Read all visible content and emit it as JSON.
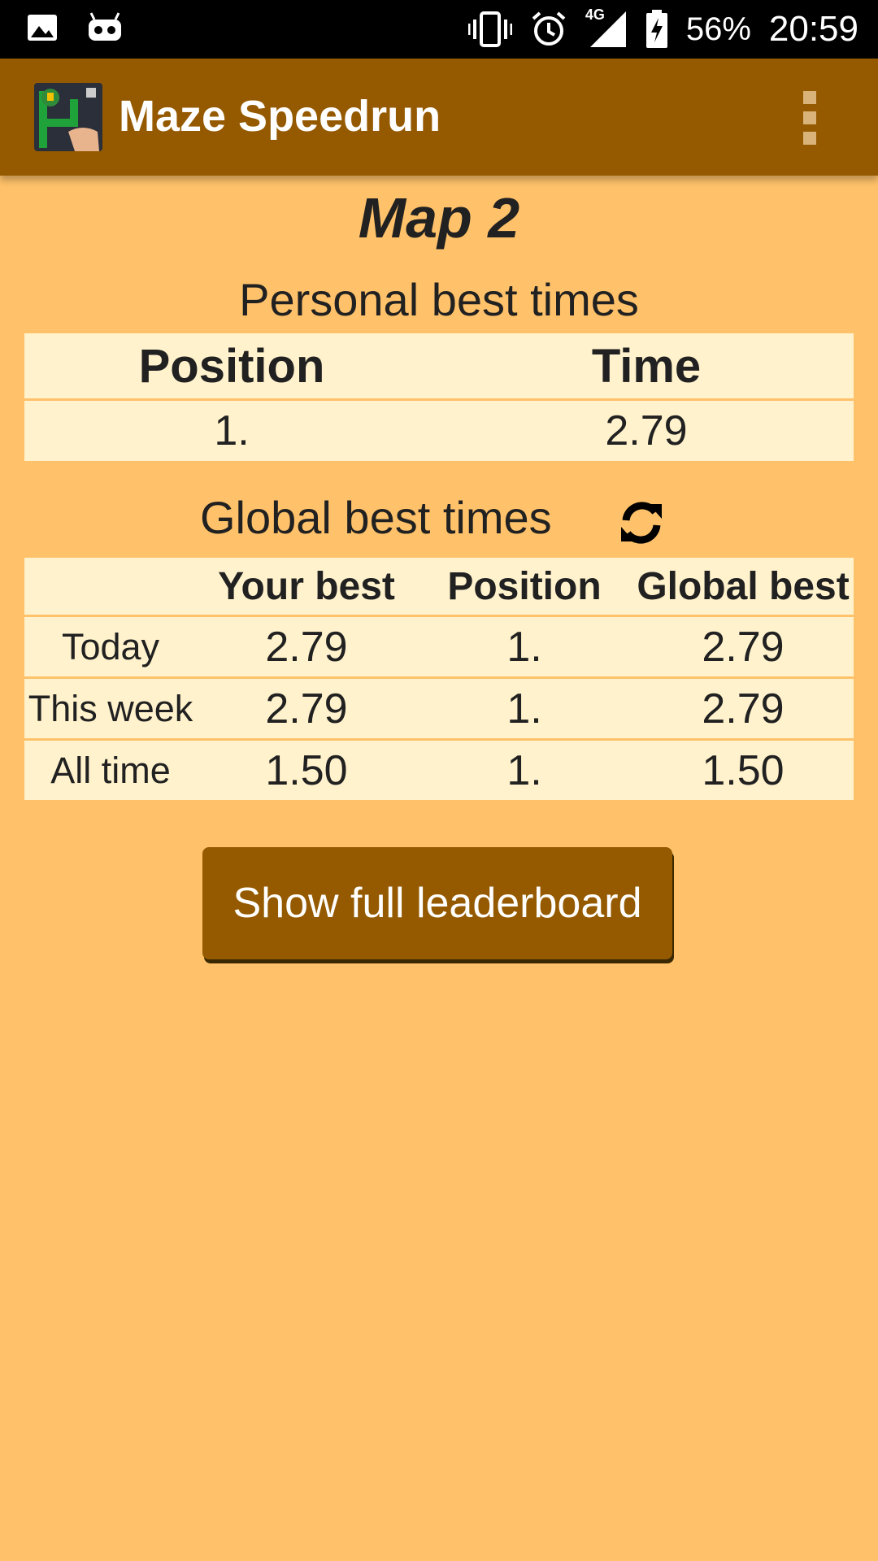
{
  "status_bar": {
    "icons": [
      "image-icon",
      "android-debug-icon",
      "vibrate-icon",
      "alarm-icon",
      "signal-icon",
      "battery-charging-icon"
    ],
    "network": "4G",
    "battery": "56%",
    "time": "20:59"
  },
  "app_bar": {
    "title": "Maze Speedrun",
    "overflow_icon": "more-vert-icon"
  },
  "map_title": "Map 2",
  "personal": {
    "title": "Personal best times",
    "headers": [
      "Position",
      "Time"
    ],
    "rows": [
      [
        "1.",
        "2.79"
      ]
    ]
  },
  "global": {
    "title": "Global best times",
    "refresh_icon": "refresh-icon",
    "headers": [
      "",
      "Your best",
      "Position",
      "Global best"
    ],
    "rows": [
      [
        "Today",
        "2.79",
        "1.",
        "2.79"
      ],
      [
        "This week",
        "2.79",
        "1.",
        "2.79"
      ],
      [
        "All time",
        "1.50",
        "1.",
        "1.50"
      ]
    ]
  },
  "button": {
    "label": "Show full leaderboard"
  },
  "colors": {
    "background": "#FFC26A",
    "app_bar": "#955A00",
    "table_bg": "#FFF2CC",
    "button": "#955A00"
  }
}
